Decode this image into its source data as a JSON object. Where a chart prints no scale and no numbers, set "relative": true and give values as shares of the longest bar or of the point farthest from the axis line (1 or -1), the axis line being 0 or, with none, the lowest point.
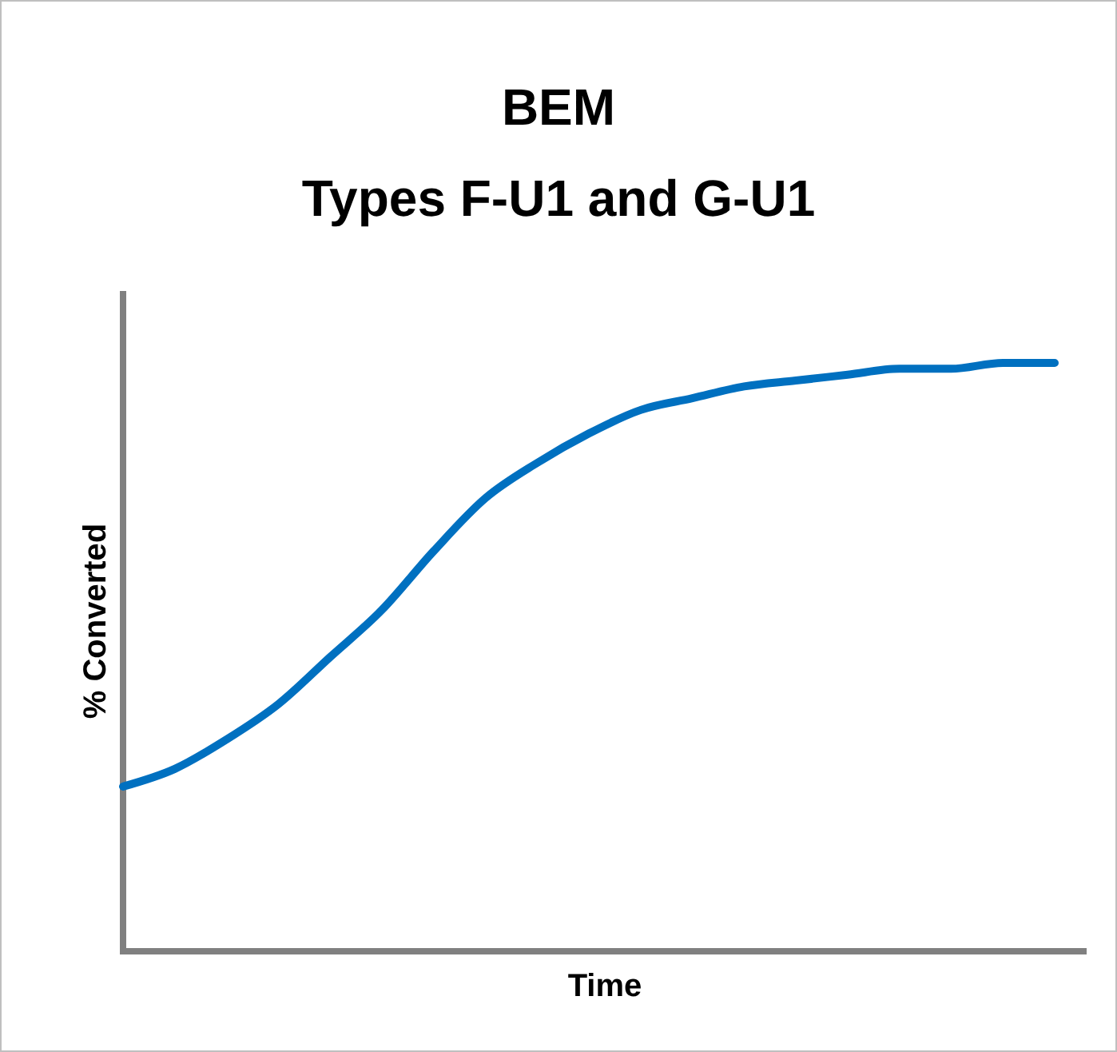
{
  "chart_data": {
    "type": "line",
    "title": "BEM",
    "subtitle": "Types F-U1 and G-U1",
    "xlabel": "Time",
    "ylabel": "% Converted",
    "relative": true,
    "categories": [
      null,
      null,
      null,
      null,
      null,
      null,
      null,
      null,
      null,
      null,
      null,
      null,
      null,
      null,
      null,
      null,
      null,
      null,
      null
    ],
    "series": [
      {
        "color": "#0070c0",
        "values": [
          0.28,
          0.31,
          0.36,
          0.42,
          0.5,
          0.58,
          0.68,
          0.77,
          0.83,
          0.88,
          0.92,
          0.94,
          0.96,
          0.97,
          0.98,
          0.99,
          0.99,
          1.0,
          1.0
        ]
      }
    ]
  }
}
